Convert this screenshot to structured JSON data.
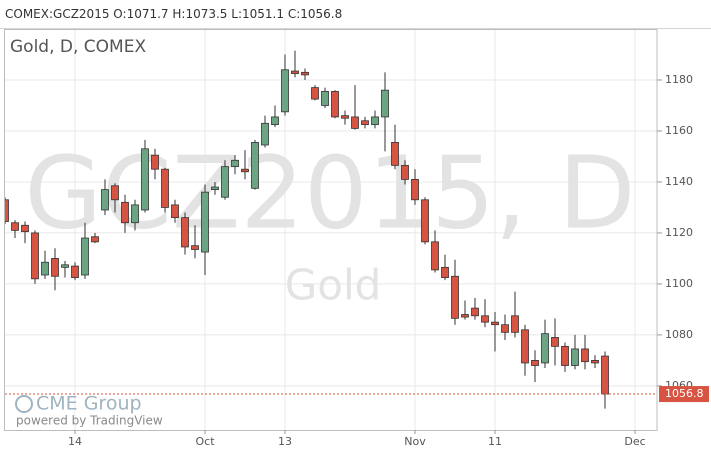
{
  "header": {
    "symbol": "COMEX:GCZ2015",
    "open": "O:1071.7",
    "high": "H:1073.5",
    "low": "L:1051.1",
    "close": "C:1056.8"
  },
  "chart_data": {
    "type": "candlestick",
    "title": "Gold, D, COMEX",
    "watermark": "GCZ2015, D",
    "watermark_subtitle": "Gold",
    "categories": [
      null,
      null,
      null,
      null,
      null,
      null,
      null,
      "14",
      null,
      null,
      null,
      null,
      null,
      null,
      null,
      null,
      null,
      null,
      null,
      null,
      "Oct",
      null,
      null,
      null,
      null,
      null,
      null,
      null,
      "13",
      null,
      null,
      null,
      null,
      null,
      null,
      null,
      null,
      null,
      null,
      null,
      null,
      "Nov",
      null,
      null,
      null,
      null,
      null,
      null,
      null,
      "11",
      null,
      null,
      null,
      null,
      null,
      null,
      null,
      null,
      null,
      null,
      null,
      null,
      null,
      "Dec"
    ],
    "open": [
      1133,
      1124,
      1123,
      1120,
      1103.5,
      1110,
      1106.5,
      1107,
      1103.5,
      1118.5,
      1129,
      1138.5,
      1132,
      1124,
      1129,
      1150.5,
      1145,
      1131,
      1126,
      1115,
      1112.5,
      1137,
      1134,
      1146,
      1145,
      1137.5,
      1154.5,
      1162.5,
      1167.5,
      1183.5,
      1183,
      1177,
      1170,
      1175.5,
      1166,
      1165.5,
      1164,
      1162.5,
      1165.5,
      1155.5,
      1146.5,
      1141,
      1133,
      1116.5,
      1106.5,
      1103,
      1088,
      1090.5,
      1087.5,
      1085,
      1084,
      1087.5,
      1082,
      1070,
      1069,
      1079,
      1075.5,
      1068,
      1074.5,
      1070,
      1071.7,
      null,
      null,
      null
    ],
    "high": [
      1134,
      1125,
      1124.5,
      1121,
      1113,
      1114,
      1109,
      1108.5,
      1124,
      1120,
      1141,
      1139.5,
      1135,
      1133,
      1156.5,
      1153,
      1145.5,
      1133,
      1128,
      1123,
      1139,
      1140,
      1148.5,
      1150.5,
      1152.5,
      1156.5,
      1166,
      1170,
      1190,
      1191.5,
      1184.5,
      1178,
      1177,
      1176,
      1168,
      1178,
      1165.5,
      1168,
      1183,
      1162.5,
      1148.5,
      1145,
      1134,
      1121,
      1111.5,
      1109.5,
      1093.5,
      1094.5,
      1094,
      1089,
      1088,
      1097,
      1084,
      1074,
      1086,
      1086.5,
      1077,
      1080,
      1080,
      1072,
      1073.5,
      null,
      null,
      null
    ],
    "low": [
      1123.5,
      1118,
      1116,
      1100,
      1102,
      1097.5,
      1102.5,
      1101.5,
      1102,
      1116,
      1127,
      1128,
      1120,
      1121,
      1128,
      1141,
      1128,
      1124,
      1111.5,
      1110,
      1103.5,
      1135,
      1133,
      1143,
      1141,
      1137,
      1153.5,
      1161.5,
      1166,
      1181,
      1180,
      1172,
      1169,
      1165,
      1162.5,
      1160.5,
      1161,
      1161,
      1152,
      1145,
      1139,
      1131,
      1115.5,
      1104.5,
      1101.5,
      1084,
      1086,
      1086,
      1083,
      1073.5,
      1078,
      1079,
      1064,
      1061.5,
      1067,
      1068,
      1065.5,
      1066.5,
      1066.5,
      1067,
      1051.1,
      null,
      null,
      null
    ],
    "close": [
      1124.5,
      1121,
      1120.5,
      1102,
      1108.5,
      1103,
      1107.5,
      1102.5,
      1118,
      1116.5,
      1137,
      1133,
      1124,
      1131,
      1153,
      1145,
      1130,
      1126,
      1114.5,
      1113.5,
      1136,
      1138,
      1146,
      1148.5,
      1144,
      1155.5,
      1163,
      1165.5,
      1184,
      1182.5,
      1182,
      1172.5,
      1175.5,
      1165.5,
      1165,
      1161,
      1162.5,
      1165.5,
      1176,
      1146.5,
      1141,
      1133,
      1116.5,
      1105.5,
      1102.5,
      1086.5,
      1087,
      1087.5,
      1085,
      1084,
      1081,
      1081,
      1069,
      1068,
      1080.5,
      1075.5,
      1068,
      1074.5,
      1069.5,
      1069,
      1056.8,
      null,
      null,
      null
    ],
    "ylim": [
      1042.7,
      1199.6
    ],
    "yticks": [
      1060,
      1080,
      1100,
      1120,
      1140,
      1160,
      1180
    ],
    "last_price": 1056.8,
    "up_color": "#6ba583",
    "down_color": "#d75442",
    "grid": true
  },
  "branding": {
    "logo": "CME Group",
    "powered_by": "powered by TradingView"
  }
}
